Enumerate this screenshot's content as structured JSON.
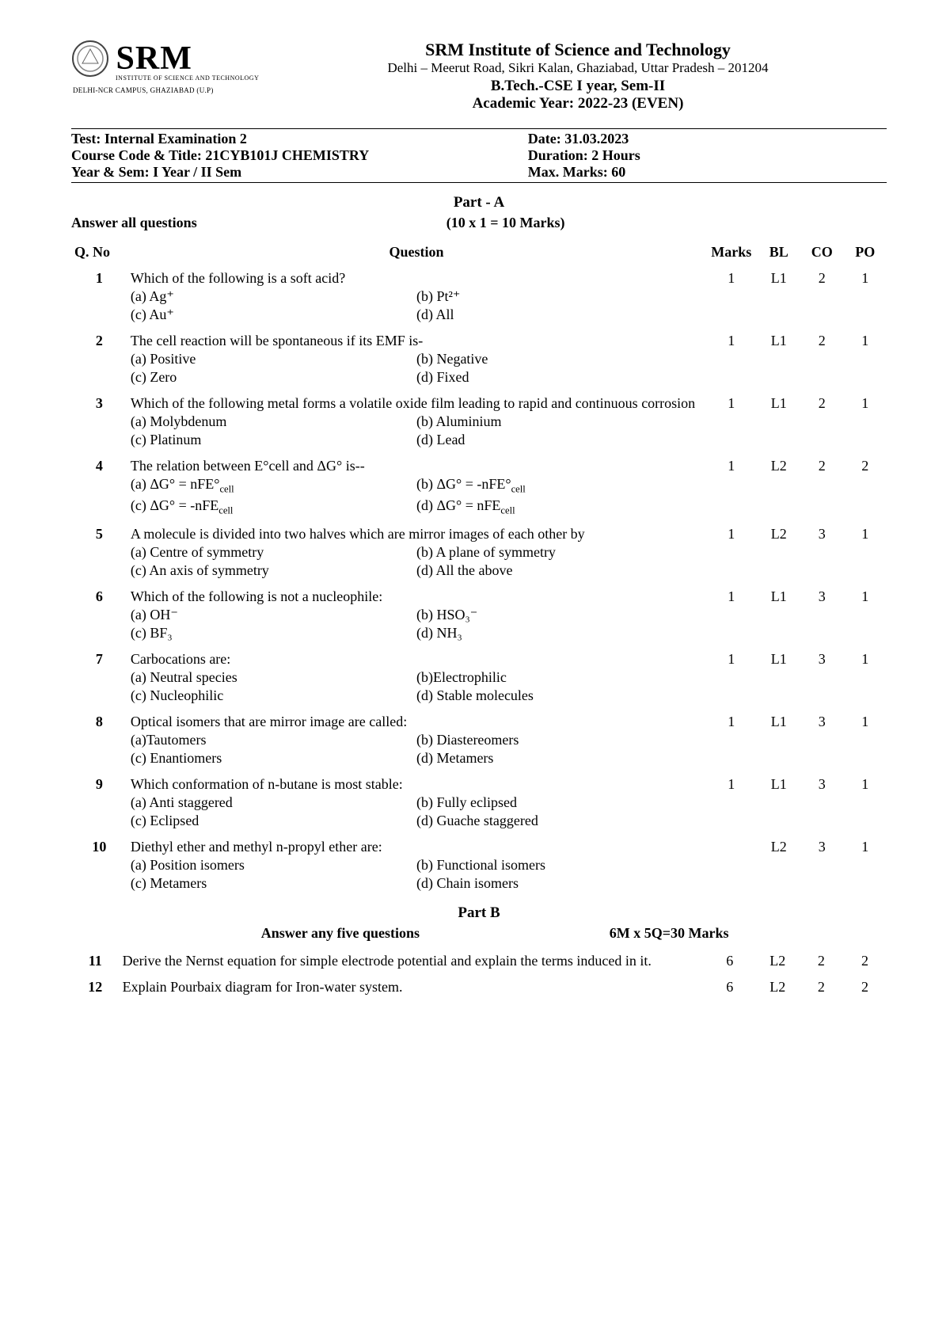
{
  "logo": {
    "name": "SRM",
    "sub": "INSTITUTE OF SCIENCE AND TECHNOLOGY",
    "campus": "DELHI-NCR CAMPUS, GHAZIABAD (U.P)"
  },
  "header": {
    "institute": "SRM Institute of Science and Technology",
    "address": "Delhi – Meerut Road, Sikri Kalan, Ghaziabad, Uttar Pradesh – 201204",
    "program": "B.Tech.-CSE I year, Sem-II",
    "academic": "Academic Year: 2022-23 (EVEN)"
  },
  "test": {
    "name": "Test: Internal Examination 2",
    "course": "Course Code & Title: 21CYB101J CHEMISTRY",
    "yearsem": "Year & Sem: I Year / II Sem",
    "date": "Date: 31.03.2023",
    "duration": "Duration: 2 Hours",
    "maxmarks": "Max. Marks: 60"
  },
  "partA": {
    "title": "Part - A",
    "answer": "Answer all questions",
    "marksNote": "(10 x 1 = 10 Marks)",
    "cols": {
      "no": "Q. No",
      "q": "Question",
      "marks": "Marks",
      "bl": "BL",
      "co": "CO",
      "po": "PO"
    }
  },
  "questions": [
    {
      "no": "1",
      "text": "Which of the following is a soft acid?",
      "a": "(a) Ag⁺",
      "b": "(b) Pt²⁺",
      "c": "(c) Au⁺",
      "d": "(d) All",
      "marks": "1",
      "bl": "L1",
      "co": "2",
      "po": "1"
    },
    {
      "no": "2",
      "text": "The cell reaction will be spontaneous if its EMF is-",
      "a": "(a) Positive",
      "b": "(b) Negative",
      "c": "(c) Zero",
      "d": "(d) Fixed",
      "marks": "1",
      "bl": "L1",
      "co": "2",
      "po": "1"
    },
    {
      "no": "3",
      "text": "Which of the following metal forms a volatile oxide film leading to rapid and continuous corrosion",
      "a": "(a) Molybdenum",
      "b": "(b) Aluminium",
      "c": "(c) Platinum",
      "d": "(d) Lead",
      "marks": "1",
      "bl": "L1",
      "co": "2",
      "po": "1"
    },
    {
      "no": "4",
      "text": "The relation between E°cell and ΔG° is--",
      "a": "(a) ΔG° = nFE°",
      "b": "(b) ΔG° = -nFE°",
      "c": "(c) ΔG° = -nFE",
      "d": "(d) ΔG° = nFE",
      "asub": "cell",
      "bsub": "cell",
      "csub": "cell",
      "dsub": "cell",
      "marks": "1",
      "bl": "L2",
      "co": "2",
      "po": "2"
    },
    {
      "no": "5",
      "text": "A molecule is divided into two halves which are mirror images of each other by",
      "a": "(a) Centre of symmetry",
      "b": "(b) A plane of symmetry",
      "c": "(c) An axis of symmetry",
      "d": "(d) All the above",
      "marks": "1",
      "bl": "L2",
      "co": "3",
      "po": "1"
    },
    {
      "no": "6",
      "text": "Which of the following is not a nucleophile:",
      "a": "(a) OH⁻",
      "b": "(b) HSO₃⁻",
      "c": "(c) BF₃",
      "d": "(d) NH₃",
      "marks": "1",
      "bl": "L1",
      "co": "3",
      "po": "1"
    },
    {
      "no": "7",
      "text": "Carbocations are:",
      "a": "(a) Neutral species",
      "b": "(b)Electrophilic",
      "c": "(c) Nucleophilic",
      "d": "(d) Stable molecules",
      "marks": "1",
      "bl": "L1",
      "co": "3",
      "po": "1"
    },
    {
      "no": "8",
      "text": "Optical isomers that are mirror image are called:",
      "a": "(a)Tautomers",
      "b": "(b) Diastereomers",
      "c": "(c) Enantiomers",
      "d": "(d) Metamers",
      "marks": "1",
      "bl": "L1",
      "co": "3",
      "po": "1"
    },
    {
      "no": "9",
      "text": "Which conformation of n-butane is most stable:",
      "a": "(a) Anti staggered",
      "b": "(b) Fully eclipsed",
      "c": "(c) Eclipsed",
      "d": "(d) Guache staggered",
      "marks": "1",
      "bl": "L1",
      "co": "3",
      "po": "1"
    },
    {
      "no": "10",
      "text": "Diethyl ether and methyl n-propyl ether are:",
      "a": "(a) Position isomers",
      "b": "(b) Functional isomers",
      "c": "(c) Metamers",
      "d": "(d) Chain isomers",
      "marks": "",
      "bl": "L2",
      "co": "3",
      "po": "1"
    }
  ],
  "partB": {
    "title": "Part B",
    "answer": "Answer any five questions",
    "marksNote": "6M x 5Q=30 Marks"
  },
  "questionsB": [
    {
      "no": "11",
      "text": "Derive the Nernst equation for simple electrode potential and explain the terms induced in it.",
      "marks": "6",
      "bl": "L2",
      "co": "2",
      "po": "2"
    },
    {
      "no": "12",
      "text": "Explain Pourbaix diagram for Iron-water system.",
      "marks": "6",
      "bl": "L2",
      "co": "2",
      "po": "2"
    }
  ]
}
